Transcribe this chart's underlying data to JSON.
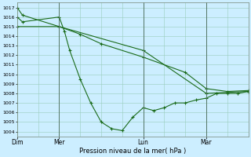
{
  "title": "",
  "xlabel": "Pression niveau de la mer( hPa )",
  "background_color": "#cceeff",
  "grid_color": "#99ccbb",
  "line_color": "#1a6b1a",
  "ylim": [
    1003.5,
    1017.5
  ],
  "yticks": [
    1004,
    1005,
    1006,
    1007,
    1008,
    1009,
    1010,
    1011,
    1012,
    1013,
    1014,
    1015,
    1016,
    1017
  ],
  "day_labels": [
    "Dim",
    "Mer",
    "Lun",
    "Mar"
  ],
  "day_positions": [
    0,
    16,
    48,
    72
  ],
  "xlim": [
    0,
    88
  ],
  "series1_x": [
    0,
    2,
    16,
    24,
    32,
    48,
    64,
    72,
    80,
    88
  ],
  "series1_y": [
    1017,
    1016.2,
    1015,
    1014.2,
    1013.2,
    1011.8,
    1010.2,
    1008.5,
    1008.2,
    1008.3
  ],
  "series2_x": [
    0,
    2,
    16,
    18,
    20,
    24,
    28,
    32,
    36,
    40,
    44,
    48,
    52,
    56,
    60,
    64,
    68,
    72,
    76,
    80,
    84,
    88
  ],
  "series2_y": [
    1016,
    1015.5,
    1016,
    1014.5,
    1012.5,
    1009.5,
    1007,
    1005,
    1004.3,
    1004.1,
    1005.5,
    1006.5,
    1006.2,
    1006.5,
    1007.0,
    1007.0,
    1007.3,
    1007.5,
    1008.0,
    1008.0,
    1008.0,
    1008.2
  ],
  "series3_x": [
    0,
    16,
    48,
    72,
    88
  ],
  "series3_y": [
    1015,
    1015,
    1012.5,
    1008.0,
    1008.2
  ],
  "marker": "+",
  "marker_size": 3.0,
  "line_width": 0.8
}
